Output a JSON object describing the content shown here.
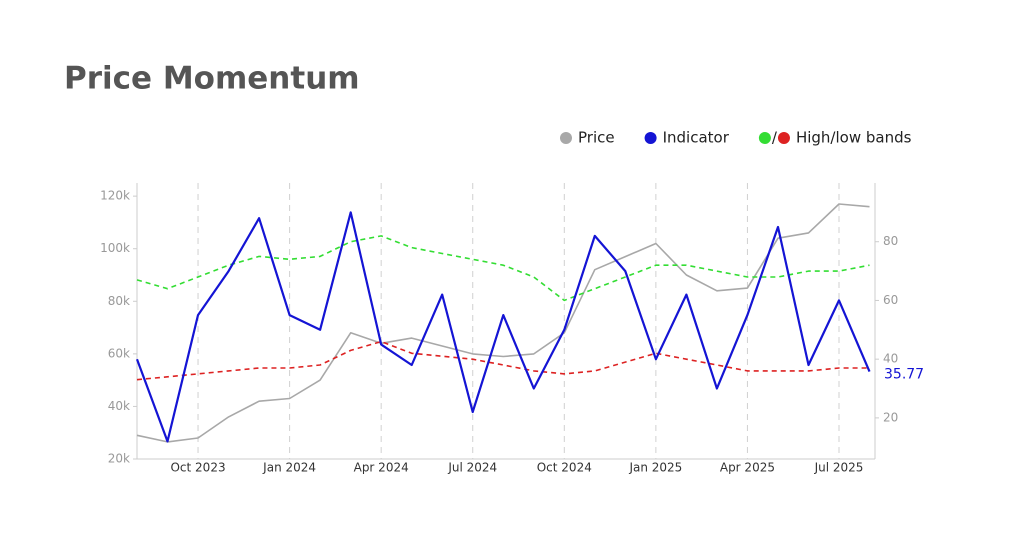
{
  "chart_data": {
    "type": "line",
    "title": "Price Momentum",
    "x": [
      "2023-08",
      "2023-09",
      "2023-10",
      "2023-11",
      "2023-12",
      "2024-01",
      "2024-02",
      "2024-03",
      "2024-04",
      "2024-05",
      "2024-06",
      "2024-07",
      "2024-08",
      "2024-09",
      "2024-10",
      "2024-11",
      "2024-12",
      "2025-01",
      "2025-02",
      "2025-03",
      "2025-04",
      "2025-05",
      "2025-06",
      "2025-07",
      "2025-08"
    ],
    "xticks": [
      {
        "value": "2023-10",
        "label": "Oct 2023"
      },
      {
        "value": "2024-01",
        "label": "Jan 2024"
      },
      {
        "value": "2024-04",
        "label": "Apr 2024"
      },
      {
        "value": "2024-07",
        "label": "Jul 2024"
      },
      {
        "value": "2024-10",
        "label": "Oct 2024"
      },
      {
        "value": "2025-01",
        "label": "Jan 2025"
      },
      {
        "value": "2025-04",
        "label": "Apr 2025"
      },
      {
        "value": "2025-07",
        "label": "Jul 2025"
      }
    ],
    "ylim": [
      20000,
      125000
    ],
    "yticks": [
      {
        "value": 20000,
        "label": "20k"
      },
      {
        "value": 40000,
        "label": "40k"
      },
      {
        "value": 60000,
        "label": "60k"
      },
      {
        "value": 80000,
        "label": "80k"
      },
      {
        "value": 100000,
        "label": "100k"
      },
      {
        "value": 120000,
        "label": "120k"
      }
    ],
    "y2lim": [
      6,
      100
    ],
    "y2ticks": [
      20,
      40,
      60,
      80
    ],
    "grid": true,
    "series": [
      {
        "name": "Price",
        "color": "#a8a8a8",
        "values": [
          29000,
          26500,
          28000,
          36000,
          42000,
          43000,
          50000,
          68000,
          64000,
          66000,
          63000,
          60000,
          59000,
          60000,
          68000,
          92000,
          97000,
          102000,
          90000,
          84000,
          85000,
          104000,
          106000,
          117000,
          116000
        ]
      },
      {
        "name": "Indicator",
        "color": "#1414d4",
        "axis": "y2",
        "values": [
          40,
          12,
          55,
          70,
          88,
          55,
          50,
          90,
          45,
          38,
          62,
          22,
          55,
          30,
          50,
          82,
          70,
          40,
          62,
          30,
          55,
          85,
          38,
          60,
          35.77
        ]
      },
      {
        "color": "#33dd33",
        "axis": "y2",
        "dashed": true,
        "values": [
          67,
          64,
          68,
          72,
          75,
          74,
          75,
          80,
          82,
          78,
          76,
          74,
          72,
          68,
          60,
          64,
          68,
          72,
          72,
          70,
          68,
          68,
          70,
          70,
          72
        ]
      },
      {
        "color": "#dd2222",
        "axis": "y2",
        "dashed": true,
        "values": [
          33,
          34,
          35,
          36,
          37,
          37,
          38,
          43,
          46,
          42,
          41,
          40,
          38,
          36,
          35,
          36,
          39,
          42,
          40,
          38,
          36,
          36,
          36,
          37,
          37
        ]
      }
    ],
    "band_label": "High/low bands",
    "legend_separator": "/"
  }
}
